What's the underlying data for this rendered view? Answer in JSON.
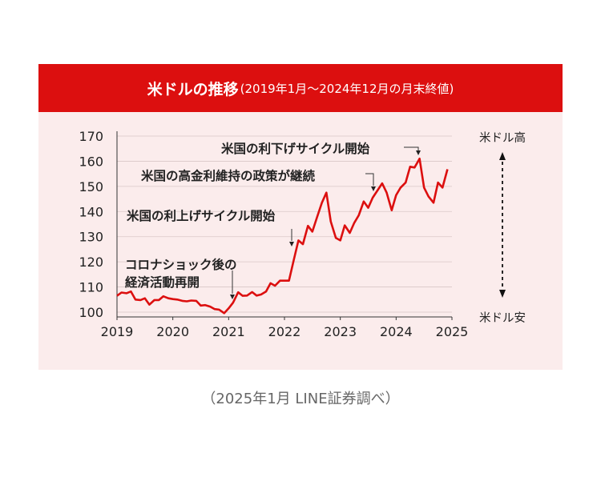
{
  "title": {
    "main": "米ドルの推移",
    "sub": "(2019年1月〜2024年12月の月末終値)"
  },
  "source_note": "（2025年1月 LINE証券調べ）",
  "colors": {
    "accent": "#dc0f0f",
    "panel": "#fbecec",
    "line": "#dc0f0f",
    "text": "#222222"
  },
  "side_labels": {
    "top": "米ドル高",
    "bottom": "米ドル安"
  },
  "chart_data": {
    "type": "line",
    "title": "米ドルの推移",
    "xlabel": "",
    "ylabel": "",
    "xlim": [
      2019,
      2025
    ],
    "ylim": [
      100,
      170
    ],
    "y_ticks": [
      100,
      110,
      120,
      130,
      140,
      150,
      160,
      170
    ],
    "x_ticks": [
      "2019",
      "2020",
      "2021",
      "2022",
      "2023",
      "2024",
      "2025"
    ],
    "grid": "horizontal",
    "series": [
      {
        "values": [
          [
            2019.0,
            106.5
          ],
          [
            2019.08,
            107.8
          ],
          [
            2019.17,
            107.5
          ],
          [
            2019.25,
            108.2
          ],
          [
            2019.33,
            105.0
          ],
          [
            2019.42,
            104.8
          ],
          [
            2019.5,
            105.5
          ],
          [
            2019.58,
            103.0
          ],
          [
            2019.67,
            104.8
          ],
          [
            2019.75,
            104.8
          ],
          [
            2019.83,
            106.3
          ],
          [
            2019.92,
            105.5
          ],
          [
            2020.0,
            105.2
          ],
          [
            2020.08,
            105.0
          ],
          [
            2020.17,
            104.5
          ],
          [
            2020.25,
            104.3
          ],
          [
            2020.33,
            104.6
          ],
          [
            2020.42,
            104.5
          ],
          [
            2020.5,
            102.6
          ],
          [
            2020.58,
            102.8
          ],
          [
            2020.67,
            102.2
          ],
          [
            2020.75,
            101.2
          ],
          [
            2020.83,
            101.0
          ],
          [
            2020.92,
            99.6
          ],
          [
            2021.0,
            101.5
          ],
          [
            2021.08,
            103.8
          ],
          [
            2021.17,
            107.9
          ],
          [
            2021.25,
            106.5
          ],
          [
            2021.33,
            106.6
          ],
          [
            2021.42,
            108.0
          ],
          [
            2021.5,
            106.6
          ],
          [
            2021.58,
            107.0
          ],
          [
            2021.67,
            108.2
          ],
          [
            2021.75,
            111.5
          ],
          [
            2021.83,
            110.5
          ],
          [
            2021.92,
            112.5
          ],
          [
            2022.0,
            112.5
          ],
          [
            2022.08,
            112.5
          ],
          [
            2022.17,
            121.0
          ],
          [
            2022.25,
            128.5
          ],
          [
            2022.33,
            127.0
          ],
          [
            2022.42,
            134.3
          ],
          [
            2022.5,
            132.0
          ],
          [
            2022.58,
            137.5
          ],
          [
            2022.67,
            143.5
          ],
          [
            2022.75,
            147.5
          ],
          [
            2022.83,
            136.0
          ],
          [
            2022.92,
            129.5
          ],
          [
            2023.0,
            128.5
          ],
          [
            2023.08,
            134.5
          ],
          [
            2023.17,
            131.5
          ],
          [
            2023.25,
            135.5
          ],
          [
            2023.33,
            138.5
          ],
          [
            2023.42,
            144.0
          ],
          [
            2023.5,
            141.5
          ],
          [
            2023.58,
            145.5
          ],
          [
            2023.67,
            148.5
          ],
          [
            2023.75,
            151.2
          ],
          [
            2023.83,
            147.5
          ],
          [
            2023.92,
            140.5
          ],
          [
            2024.0,
            146.5
          ],
          [
            2024.08,
            149.5
          ],
          [
            2024.17,
            151.5
          ],
          [
            2024.25,
            157.8
          ],
          [
            2024.33,
            157.5
          ],
          [
            2024.42,
            161.0
          ],
          [
            2024.5,
            149.5
          ],
          [
            2024.58,
            146.0
          ],
          [
            2024.67,
            143.5
          ],
          [
            2024.75,
            151.5
          ],
          [
            2024.83,
            149.5
          ],
          [
            2024.92,
            156.8
          ]
        ]
      }
    ],
    "annotations": [
      {
        "lines": [
          "米国の利下げサイクル開始"
        ],
        "x": 2024.45,
        "y": 161.0
      },
      {
        "lines": [
          "米国の高金利維持の政策が継続"
        ],
        "x": 2023.67,
        "y": 148.5
      },
      {
        "lines": [
          "米国の利上げサイクル開始"
        ],
        "x": 2022.25,
        "y": 128.5
      },
      {
        "lines": [
          "コロナショック後の",
          "経済活動再開"
        ],
        "x": 2021.1,
        "y": 104.0
      }
    ]
  }
}
